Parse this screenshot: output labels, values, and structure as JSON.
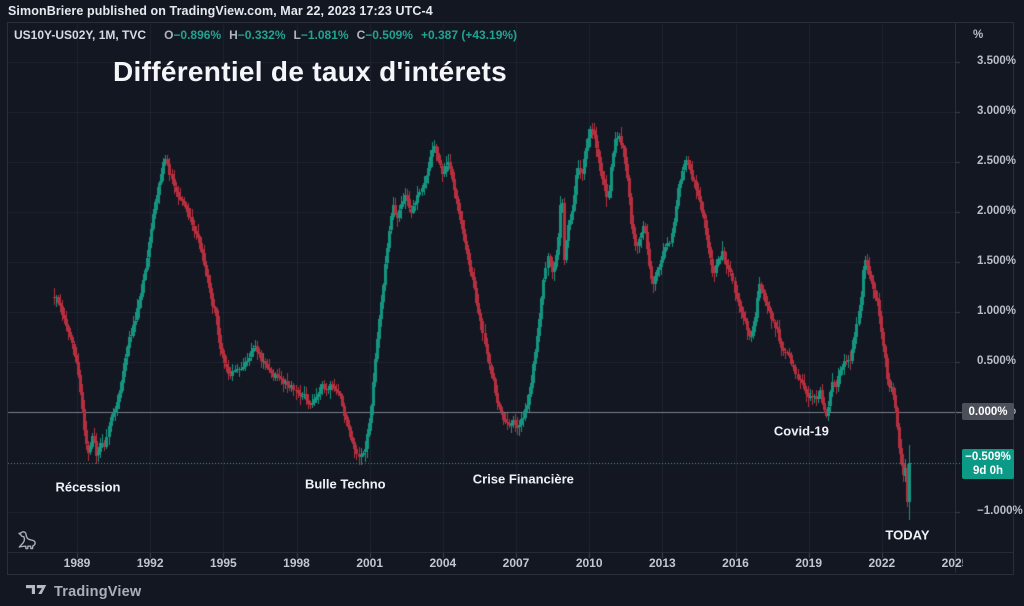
{
  "attribution": "SimonBriere published on TradingView.com, Mar 22, 2023 17:23 UTC-4",
  "title": "Différentiel de taux d'intérets",
  "legend": {
    "symbol": "US10Y-US02Y, 1M, TVC",
    "items": [
      {
        "label": "O",
        "value": "−0.896%"
      },
      {
        "label": "H",
        "value": "−0.332%"
      },
      {
        "label": "L",
        "value": "−1.081%"
      },
      {
        "label": "C",
        "value": "−0.509%"
      }
    ],
    "change": "+0.387 (+43.19%)"
  },
  "badges": {
    "zero_label": "0.000%",
    "current_price": "−0.509%",
    "countdown": "9d 0h"
  },
  "footer": {
    "logo_text": "TradingView"
  },
  "axis": {
    "unit": "%"
  },
  "chart_data": {
    "type": "candlestick",
    "symbol": "US10Y-US02Y",
    "interval": "1M",
    "exchange": "TVC",
    "unit": "%",
    "y_ticks": [
      {
        "label": "3.500%",
        "value": 3.5
      },
      {
        "label": "3.000%",
        "value": 3.0
      },
      {
        "label": "2.500%",
        "value": 2.5
      },
      {
        "label": "2.000%",
        "value": 2.0
      },
      {
        "label": "1.500%",
        "value": 1.5
      },
      {
        "label": "1.000%",
        "value": 1.0
      },
      {
        "label": "0.500%",
        "value": 0.5
      },
      {
        "label": "0.000%",
        "value": 0.0
      },
      {
        "label": "−1.000%",
        "value": -1.0
      }
    ],
    "x_ticks": [
      {
        "label": "1989",
        "year": 1989
      },
      {
        "label": "1992",
        "year": 1992
      },
      {
        "label": "1995",
        "year": 1995
      },
      {
        "label": "1998",
        "year": 1998
      },
      {
        "label": "2001",
        "year": 2001
      },
      {
        "label": "2004",
        "year": 2004
      },
      {
        "label": "2007",
        "year": 2007
      },
      {
        "label": "2010",
        "year": 2010
      },
      {
        "label": "2013",
        "year": 2013
      },
      {
        "label": "2016",
        "year": 2016
      },
      {
        "label": "2019",
        "year": 2019
      },
      {
        "label": "2022",
        "year": 2022
      },
      {
        "label": "2025",
        "year": 2025
      }
    ],
    "y_range": [
      -1.5,
      3.9
    ],
    "x_range_years": [
      1987.6,
      2025.8
    ],
    "current_price": -0.509,
    "zero_level": 0.0,
    "last_candle": {
      "o": -0.896,
      "h": -0.332,
      "l": -1.081,
      "c": -0.509
    },
    "colors": {
      "up": "#15947f",
      "down": "#b5303f",
      "accent": "#0b9a86",
      "dotted_line": "#2aa78f",
      "zero_line": "#9aa0ad"
    },
    "annotations": [
      {
        "label": "Récession",
        "year": 1989.45,
        "pct": -0.75
      },
      {
        "label": "Bulle Techno",
        "year": 2000.0,
        "pct": -0.72
      },
      {
        "label": "Crise Financière",
        "year": 2007.3,
        "pct": -0.67
      },
      {
        "label": "Covid-19",
        "year": 2018.7,
        "pct": -0.19
      },
      {
        "label": "TODAY",
        "year": 2023.05,
        "pct": -1.23
      }
    ],
    "anchors": [
      [
        1988.05,
        1.15
      ],
      [
        1988.2,
        1.1
      ],
      [
        1988.4,
        0.95
      ],
      [
        1988.6,
        0.82
      ],
      [
        1988.8,
        0.65
      ],
      [
        1989.0,
        0.45
      ],
      [
        1989.2,
        0.05
      ],
      [
        1989.35,
        -0.3
      ],
      [
        1989.5,
        -0.42
      ],
      [
        1989.65,
        -0.2
      ],
      [
        1989.8,
        -0.45
      ],
      [
        1990.0,
        -0.3
      ],
      [
        1990.15,
        -0.38
      ],
      [
        1990.3,
        -0.1
      ],
      [
        1990.5,
        0.0
      ],
      [
        1990.7,
        0.18
      ],
      [
        1990.9,
        0.45
      ],
      [
        1991.1,
        0.72
      ],
      [
        1991.3,
        0.85
      ],
      [
        1991.5,
        1.05
      ],
      [
        1991.7,
        1.3
      ],
      [
        1991.9,
        1.6
      ],
      [
        1992.1,
        1.95
      ],
      [
        1992.3,
        2.2
      ],
      [
        1992.5,
        2.45
      ],
      [
        1992.65,
        2.55
      ],
      [
        1992.8,
        2.35
      ],
      [
        1993.0,
        2.25
      ],
      [
        1993.3,
        2.08
      ],
      [
        1993.6,
        1.95
      ],
      [
        1993.9,
        1.78
      ],
      [
        1994.1,
        1.6
      ],
      [
        1994.3,
        1.35
      ],
      [
        1994.5,
        1.12
      ],
      [
        1994.7,
        0.95
      ],
      [
        1994.9,
        0.6
      ],
      [
        1995.1,
        0.45
      ],
      [
        1995.3,
        0.35
      ],
      [
        1995.5,
        0.45
      ],
      [
        1995.7,
        0.4
      ],
      [
        1995.9,
        0.5
      ],
      [
        1996.1,
        0.6
      ],
      [
        1996.3,
        0.66
      ],
      [
        1996.5,
        0.54
      ],
      [
        1996.7,
        0.46
      ],
      [
        1996.9,
        0.4
      ],
      [
        1997.1,
        0.36
      ],
      [
        1997.4,
        0.32
      ],
      [
        1997.7,
        0.27
      ],
      [
        1998.0,
        0.2
      ],
      [
        1998.3,
        0.15
      ],
      [
        1998.55,
        0.04
      ],
      [
        1998.8,
        0.16
      ],
      [
        1999.0,
        0.27
      ],
      [
        1999.2,
        0.22
      ],
      [
        1999.4,
        0.28
      ],
      [
        1999.6,
        0.22
      ],
      [
        1999.8,
        0.14
      ],
      [
        2000.0,
        -0.05
      ],
      [
        2000.2,
        -0.25
      ],
      [
        2000.4,
        -0.42
      ],
      [
        2000.6,
        -0.47
      ],
      [
        2000.8,
        -0.35
      ],
      [
        2001.0,
        -0.05
      ],
      [
        2001.15,
        0.35
      ],
      [
        2001.3,
        0.75
      ],
      [
        2001.45,
        1.1
      ],
      [
        2001.6,
        1.4
      ],
      [
        2001.8,
        1.85
      ],
      [
        2001.95,
        2.1
      ],
      [
        2002.1,
        1.92
      ],
      [
        2002.3,
        2.08
      ],
      [
        2002.5,
        2.18
      ],
      [
        2002.7,
        1.98
      ],
      [
        2002.9,
        2.12
      ],
      [
        2003.1,
        2.2
      ],
      [
        2003.3,
        2.35
      ],
      [
        2003.5,
        2.6
      ],
      [
        2003.6,
        2.7
      ],
      [
        2003.8,
        2.5
      ],
      [
        2003.95,
        2.38
      ],
      [
        2004.1,
        2.45
      ],
      [
        2004.25,
        2.48
      ],
      [
        2004.45,
        2.25
      ],
      [
        2004.65,
        2.0
      ],
      [
        2004.85,
        1.75
      ],
      [
        2005.05,
        1.5
      ],
      [
        2005.25,
        1.28
      ],
      [
        2005.45,
        1.0
      ],
      [
        2005.65,
        0.78
      ],
      [
        2005.85,
        0.52
      ],
      [
        2006.05,
        0.3
      ],
      [
        2006.25,
        0.05
      ],
      [
        2006.45,
        -0.05
      ],
      [
        2006.65,
        -0.15
      ],
      [
        2006.85,
        -0.1
      ],
      [
        2007.05,
        -0.13
      ],
      [
        2007.25,
        -0.06
      ],
      [
        2007.45,
        0.05
      ],
      [
        2007.65,
        0.35
      ],
      [
        2007.85,
        0.7
      ],
      [
        2008.0,
        1.05
      ],
      [
        2008.15,
        1.4
      ],
      [
        2008.3,
        1.55
      ],
      [
        2008.5,
        1.38
      ],
      [
        2008.7,
        1.7
      ],
      [
        2008.85,
        2.3
      ],
      [
        2008.95,
        1.5
      ],
      [
        2009.1,
        1.85
      ],
      [
        2009.3,
        2.0
      ],
      [
        2009.5,
        2.45
      ],
      [
        2009.7,
        2.4
      ],
      [
        2009.9,
        2.65
      ],
      [
        2010.05,
        2.82
      ],
      [
        2010.2,
        2.78
      ],
      [
        2010.4,
        2.5
      ],
      [
        2010.6,
        2.3
      ],
      [
        2010.75,
        2.1
      ],
      [
        2010.9,
        2.55
      ],
      [
        2011.05,
        2.72
      ],
      [
        2011.2,
        2.78
      ],
      [
        2011.4,
        2.6
      ],
      [
        2011.55,
        2.35
      ],
      [
        2011.7,
        1.9
      ],
      [
        2011.9,
        1.62
      ],
      [
        2012.1,
        1.78
      ],
      [
        2012.25,
        1.88
      ],
      [
        2012.45,
        1.5
      ],
      [
        2012.6,
        1.25
      ],
      [
        2012.8,
        1.42
      ],
      [
        2012.95,
        1.52
      ],
      [
        2013.1,
        1.66
      ],
      [
        2013.3,
        1.72
      ],
      [
        2013.5,
        1.95
      ],
      [
        2013.65,
        2.3
      ],
      [
        2013.8,
        2.4
      ],
      [
        2013.95,
        2.55
      ],
      [
        2014.1,
        2.42
      ],
      [
        2014.3,
        2.28
      ],
      [
        2014.5,
        2.15
      ],
      [
        2014.7,
        1.92
      ],
      [
        2014.9,
        1.6
      ],
      [
        2015.05,
        1.38
      ],
      [
        2015.25,
        1.48
      ],
      [
        2015.45,
        1.6
      ],
      [
        2015.65,
        1.48
      ],
      [
        2015.85,
        1.35
      ],
      [
        2016.05,
        1.1
      ],
      [
        2016.25,
        0.96
      ],
      [
        2016.45,
        0.85
      ],
      [
        2016.6,
        0.74
      ],
      [
        2016.8,
        0.95
      ],
      [
        2016.95,
        1.28
      ],
      [
        2017.1,
        1.18
      ],
      [
        2017.3,
        1.08
      ],
      [
        2017.5,
        0.92
      ],
      [
        2017.7,
        0.82
      ],
      [
        2017.9,
        0.6
      ],
      [
        2018.1,
        0.62
      ],
      [
        2018.3,
        0.48
      ],
      [
        2018.5,
        0.36
      ],
      [
        2018.7,
        0.27
      ],
      [
        2018.9,
        0.17
      ],
      [
        2019.1,
        0.15
      ],
      [
        2019.3,
        0.14
      ],
      [
        2019.45,
        0.2
      ],
      [
        2019.6,
        0.02
      ],
      [
        2019.7,
        -0.03
      ],
      [
        2019.85,
        0.13
      ],
      [
        2019.95,
        0.3
      ],
      [
        2020.1,
        0.22
      ],
      [
        2020.3,
        0.44
      ],
      [
        2020.5,
        0.5
      ],
      [
        2020.7,
        0.52
      ],
      [
        2020.9,
        0.78
      ],
      [
        2021.1,
        1.08
      ],
      [
        2021.25,
        1.52
      ],
      [
        2021.4,
        1.45
      ],
      [
        2021.6,
        1.22
      ],
      [
        2021.8,
        1.12
      ],
      [
        2021.95,
        0.82
      ],
      [
        2022.1,
        0.6
      ],
      [
        2022.25,
        0.22
      ],
      [
        2022.4,
        0.28
      ],
      [
        2022.55,
        0.02
      ],
      [
        2022.7,
        -0.32
      ],
      [
        2022.85,
        -0.65
      ],
      [
        2022.95,
        -0.52
      ],
      [
        2023.05,
        -0.72
      ],
      [
        2023.12,
        -0.896
      ],
      [
        2023.2,
        -0.509
      ]
    ]
  }
}
